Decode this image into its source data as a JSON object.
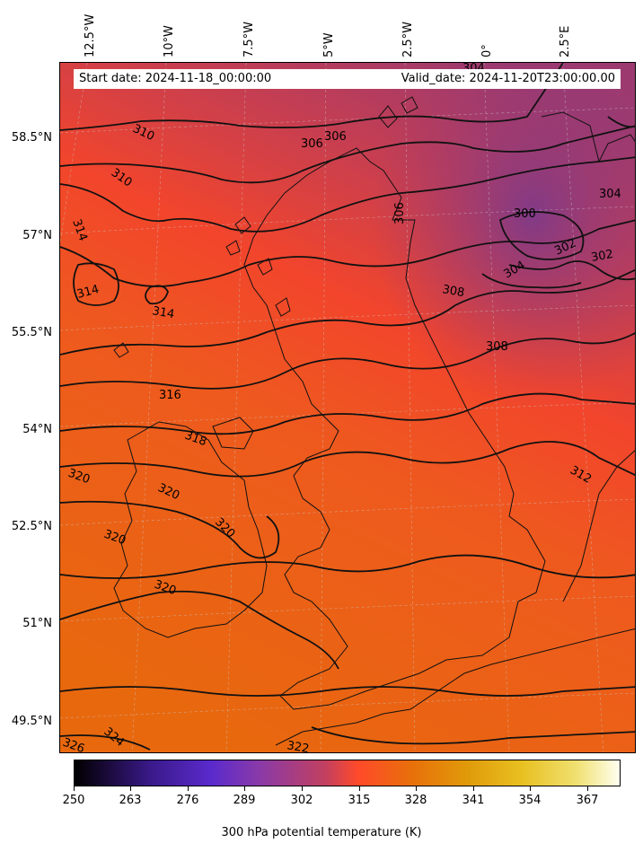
{
  "map": {
    "lon_labels": [
      "12.5°W",
      "10°W",
      "7.5°W",
      "5°W",
      "2.5°W",
      "0°",
      "2.5°E"
    ],
    "lat_labels": [
      "58.5°N",
      "57°N",
      "55.5°N",
      "54°N",
      "52.5°N",
      "51°N",
      "49.5°N"
    ],
    "start_date": "Start date: 2024-11-18_00:00:00",
    "valid_date": "Valid_date: 2024-11-20T23:00:00.00",
    "contour_labels": [
      "304",
      "310",
      "306",
      "306",
      "310",
      "306",
      "314",
      "314",
      "314",
      "300",
      "302",
      "304",
      "302",
      "304",
      "308",
      "308",
      "316",
      "318",
      "320",
      "320",
      "320",
      "320",
      "320",
      "312",
      "324",
      "322",
      "326"
    ]
  },
  "colorbar": {
    "ticks": [
      "250",
      "263",
      "276",
      "289",
      "302",
      "315",
      "328",
      "341",
      "354",
      "367"
    ],
    "title": "300 hPa potential temperature (K)",
    "colors": [
      "#000000",
      "#3a1a8a",
      "#5a2acc",
      "#c24060",
      "#ff4a2a",
      "#e8700a",
      "#e8c020",
      "#fffff0"
    ]
  }
}
